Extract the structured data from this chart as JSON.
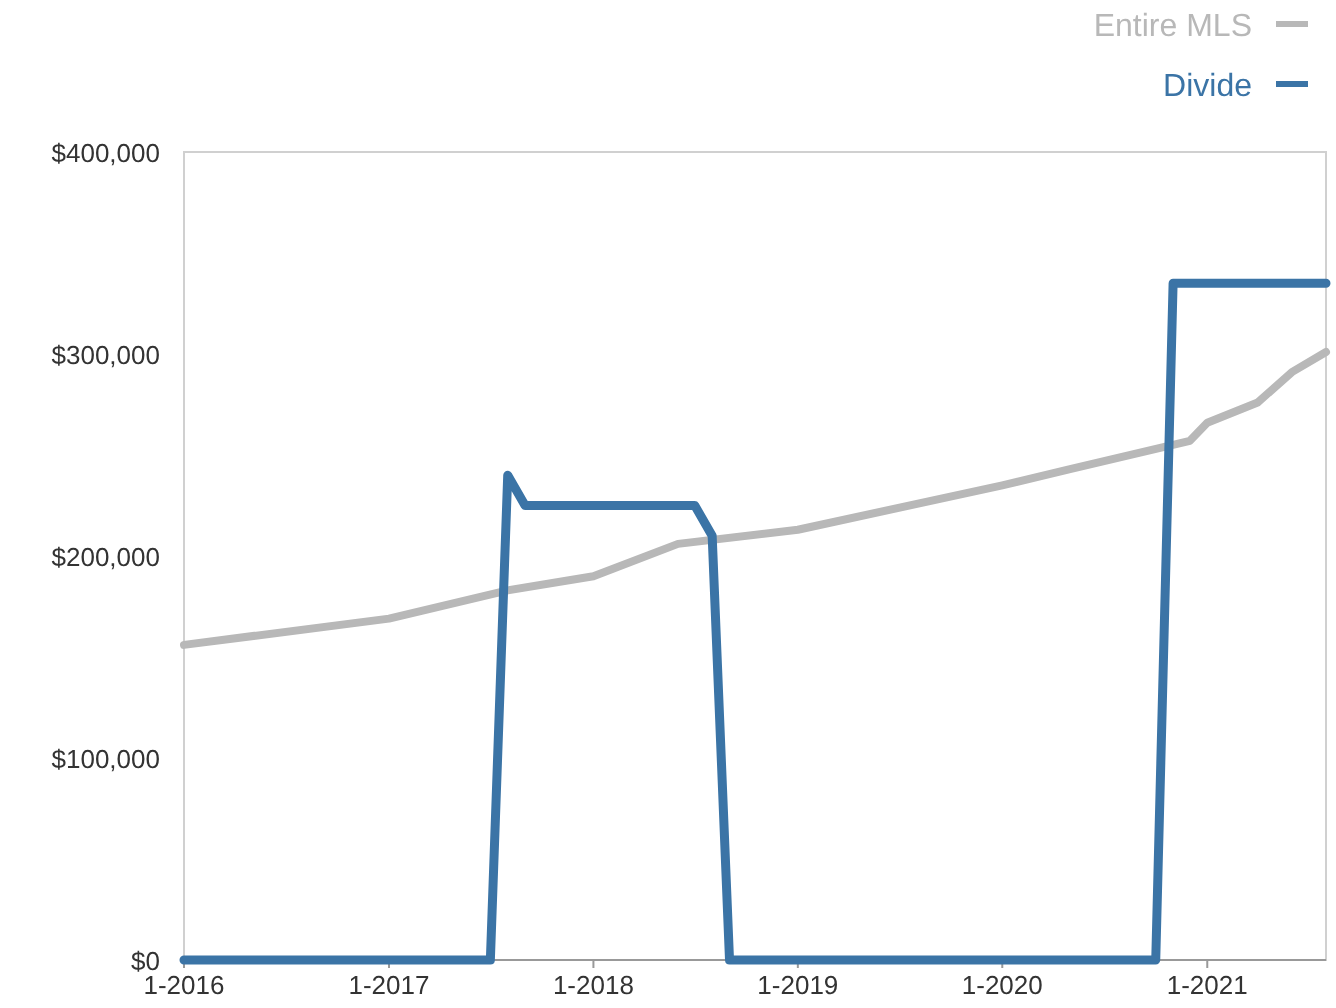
{
  "chart_data": {
    "type": "line",
    "legend": "top right",
    "grid": false,
    "xlim": [
      "2016-01",
      "2021-08"
    ],
    "xticks": [
      {
        "value": "2016-01",
        "label": "1-2016"
      },
      {
        "value": "2017-01",
        "label": "1-2017"
      },
      {
        "value": "2018-01",
        "label": "1-2018"
      },
      {
        "value": "2019-01",
        "label": "1-2019"
      },
      {
        "value": "2020-01",
        "label": "1-2020"
      },
      {
        "value": "2021-01",
        "label": "1-2021"
      }
    ],
    "ylim": [
      0,
      400000
    ],
    "yticks": [
      {
        "value": 0,
        "label": "$0"
      },
      {
        "value": 100000,
        "label": "$100,000"
      },
      {
        "value": 200000,
        "label": "$200,000"
      },
      {
        "value": 300000,
        "label": "$300,000"
      },
      {
        "value": 400000,
        "label": "$400,000"
      }
    ],
    "series": [
      {
        "name": "Entire MLS",
        "color": "#b8b8b8",
        "x": [
          "2016-01",
          "2017-01",
          "2017-08",
          "2018-01",
          "2018-06",
          "2019-01",
          "2020-01",
          "2020-05",
          "2020-12",
          "2021-01",
          "2021-04",
          "2021-06",
          "2021-08"
        ],
        "values": [
          156000,
          169000,
          183000,
          190000,
          206000,
          213000,
          235000,
          243000,
          257000,
          266000,
          276000,
          291000,
          301000
        ]
      },
      {
        "name": "Divide",
        "color": "#3b74a6",
        "x": [
          "2016-01",
          "2017-07",
          "2017-08",
          "2017-09",
          "2018-07",
          "2018-08",
          "2018-09",
          "2020-10",
          "2020-11",
          "2021-08"
        ],
        "values": [
          0,
          0,
          240000,
          225000,
          225000,
          210000,
          0,
          0,
          335000,
          335000
        ]
      }
    ]
  }
}
